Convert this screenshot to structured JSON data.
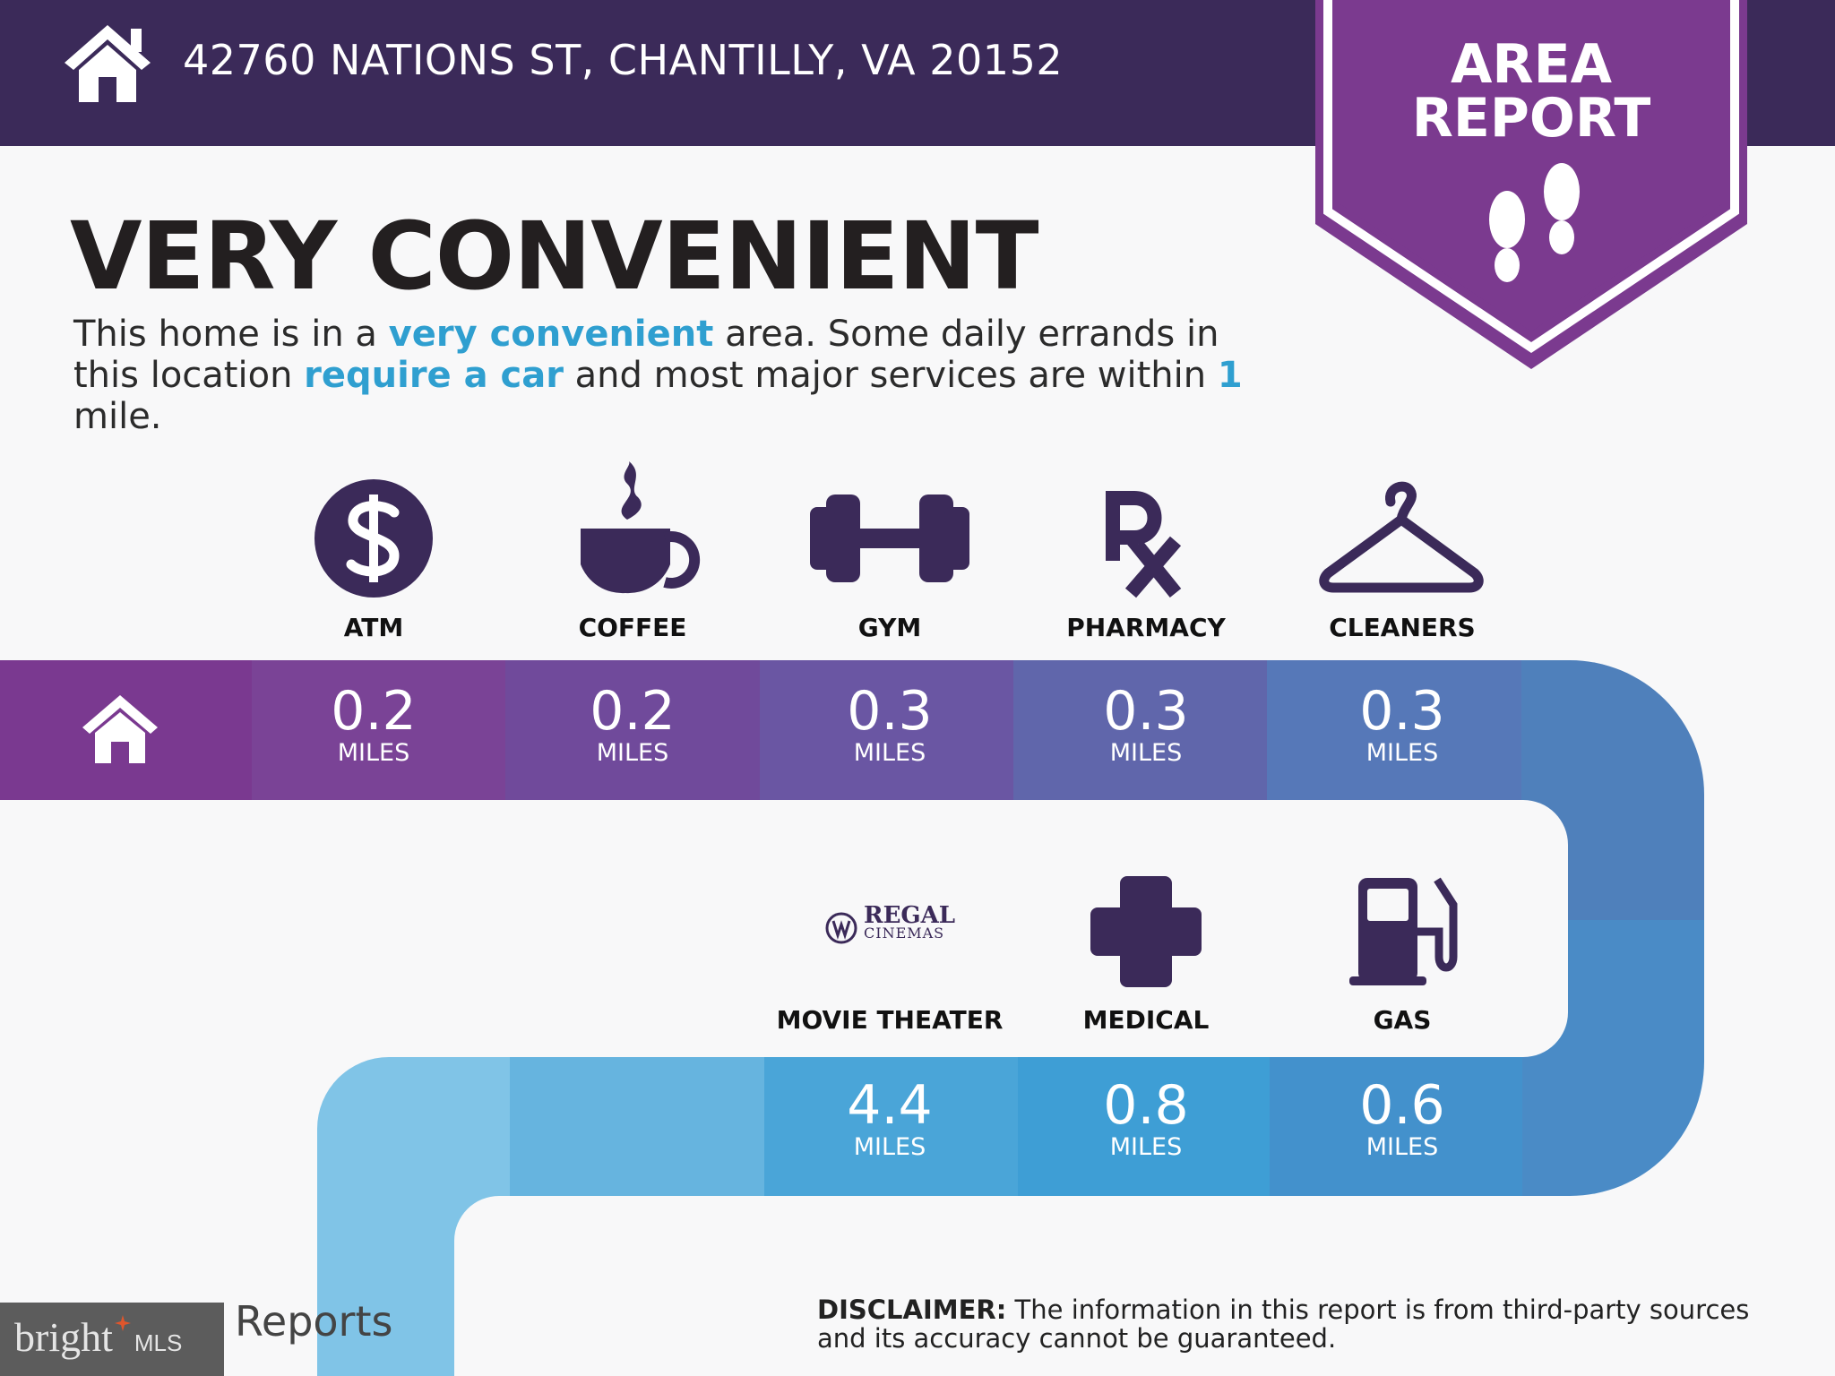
{
  "header": {
    "address": "42760 NATIONS ST, CHANTILLY, VA 20152",
    "icon": "home-icon"
  },
  "badge": {
    "line1": "AREA",
    "line2": "REPORT",
    "icon": "footprints-icon"
  },
  "headline": "VERY CONVENIENT",
  "description": {
    "p1": "This home is in a ",
    "h1": "very convenient",
    "p2": " area. Some daily errands in this location ",
    "h2": "require a car",
    "p3": " and most major services are within ",
    "h3": "1",
    "p4": " mile."
  },
  "row1": [
    {
      "label": "ATM",
      "value": "0.2",
      "unit": "MILES",
      "icon": "dollar-icon"
    },
    {
      "label": "COFFEE",
      "value": "0.2",
      "unit": "MILES",
      "icon": "coffee-cup-icon"
    },
    {
      "label": "GYM",
      "value": "0.3",
      "unit": "MILES",
      "icon": "dumbbell-icon"
    },
    {
      "label": "PHARMACY",
      "value": "0.3",
      "unit": "MILES",
      "icon": "rx-icon"
    },
    {
      "label": "CLEANERS",
      "value": "0.3",
      "unit": "MILES",
      "icon": "hanger-icon"
    }
  ],
  "row2": [
    {
      "label": "MOVIE THEATER",
      "value": "4.4",
      "unit": "MILES",
      "icon": "regal-cinemas-logo",
      "logo_text1": "REGAL",
      "logo_text2": "CINEMAS"
    },
    {
      "label": "MEDICAL",
      "value": "0.8",
      "unit": "MILES",
      "icon": "medical-cross-icon"
    },
    {
      "label": "GAS",
      "value": "0.6",
      "unit": "MILES",
      "icon": "gas-pump-icon"
    }
  ],
  "disclaimer": {
    "bold": "DISCLAIMER:",
    "text": " The information in this report is from third-party sources and its accuracy cannot be guaranteed."
  },
  "footer": {
    "reports_text": "Reports",
    "watermark_brand": "bright",
    "watermark_suffix": "MLS"
  },
  "colors": {
    "header": "#3b2a59",
    "badge": "#7b3a8f",
    "accent_text": "#2f9fd0",
    "icon": "#3b2a59"
  }
}
